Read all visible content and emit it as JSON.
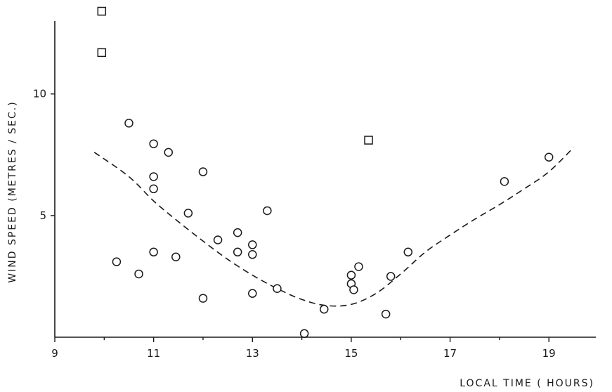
{
  "chart_data": {
    "type": "scatter",
    "xlabel": "LOCAL TIME ( HOURS)",
    "ylabel": "WIND SPEED (METRES / SEC.)",
    "xlim": [
      9,
      19.95
    ],
    "ylim": [
      0,
      13.4
    ],
    "x_ticks": [
      9,
      11,
      13,
      15,
      17,
      19
    ],
    "x_minor_ticks": [
      10,
      12,
      14,
      16,
      18
    ],
    "y_ticks": [
      5,
      10
    ],
    "grid": false,
    "series": [
      {
        "marker": "circle",
        "points": [
          [
            10.5,
            8.8
          ],
          [
            11.0,
            7.95
          ],
          [
            11.3,
            7.6
          ],
          [
            11.0,
            6.6
          ],
          [
            11.0,
            6.1
          ],
          [
            12.0,
            6.8
          ],
          [
            11.7,
            5.1
          ],
          [
            13.3,
            5.2
          ],
          [
            12.7,
            4.3
          ],
          [
            12.3,
            4.0
          ],
          [
            13.0,
            3.8
          ],
          [
            12.7,
            3.5
          ],
          [
            13.0,
            3.4
          ],
          [
            11.0,
            3.5
          ],
          [
            11.45,
            3.3
          ],
          [
            10.25,
            3.1
          ],
          [
            10.7,
            2.6
          ],
          [
            12.0,
            1.6
          ],
          [
            13.0,
            1.8
          ],
          [
            13.5,
            2.0
          ],
          [
            14.45,
            1.15
          ],
          [
            14.05,
            0.15
          ],
          [
            15.0,
            2.55
          ],
          [
            15.0,
            2.2
          ],
          [
            15.05,
            1.95
          ],
          [
            15.15,
            2.9
          ],
          [
            15.8,
            2.5
          ],
          [
            15.7,
            0.95
          ],
          [
            16.15,
            3.5
          ],
          [
            18.1,
            6.4
          ],
          [
            19.0,
            7.4
          ]
        ]
      },
      {
        "marker": "square",
        "points": [
          [
            9.95,
            13.4
          ],
          [
            9.95,
            11.7
          ],
          [
            15.35,
            8.1
          ]
        ]
      }
    ],
    "trend_line": {
      "style": "dashed",
      "points": [
        [
          9.8,
          7.6
        ],
        [
          10.5,
          6.6
        ],
        [
          11.0,
          5.6
        ],
        [
          11.5,
          4.75
        ],
        [
          12.0,
          3.95
        ],
        [
          12.5,
          3.2
        ],
        [
          13.0,
          2.55
        ],
        [
          13.5,
          2.0
        ],
        [
          14.0,
          1.55
        ],
        [
          14.5,
          1.3
        ],
        [
          15.0,
          1.35
        ],
        [
          15.5,
          1.8
        ],
        [
          16.0,
          2.6
        ],
        [
          16.5,
          3.5
        ],
        [
          17.0,
          4.2
        ],
        [
          17.5,
          4.85
        ],
        [
          18.0,
          5.45
        ],
        [
          18.5,
          6.1
        ],
        [
          19.0,
          6.8
        ],
        [
          19.5,
          7.8
        ]
      ]
    }
  }
}
